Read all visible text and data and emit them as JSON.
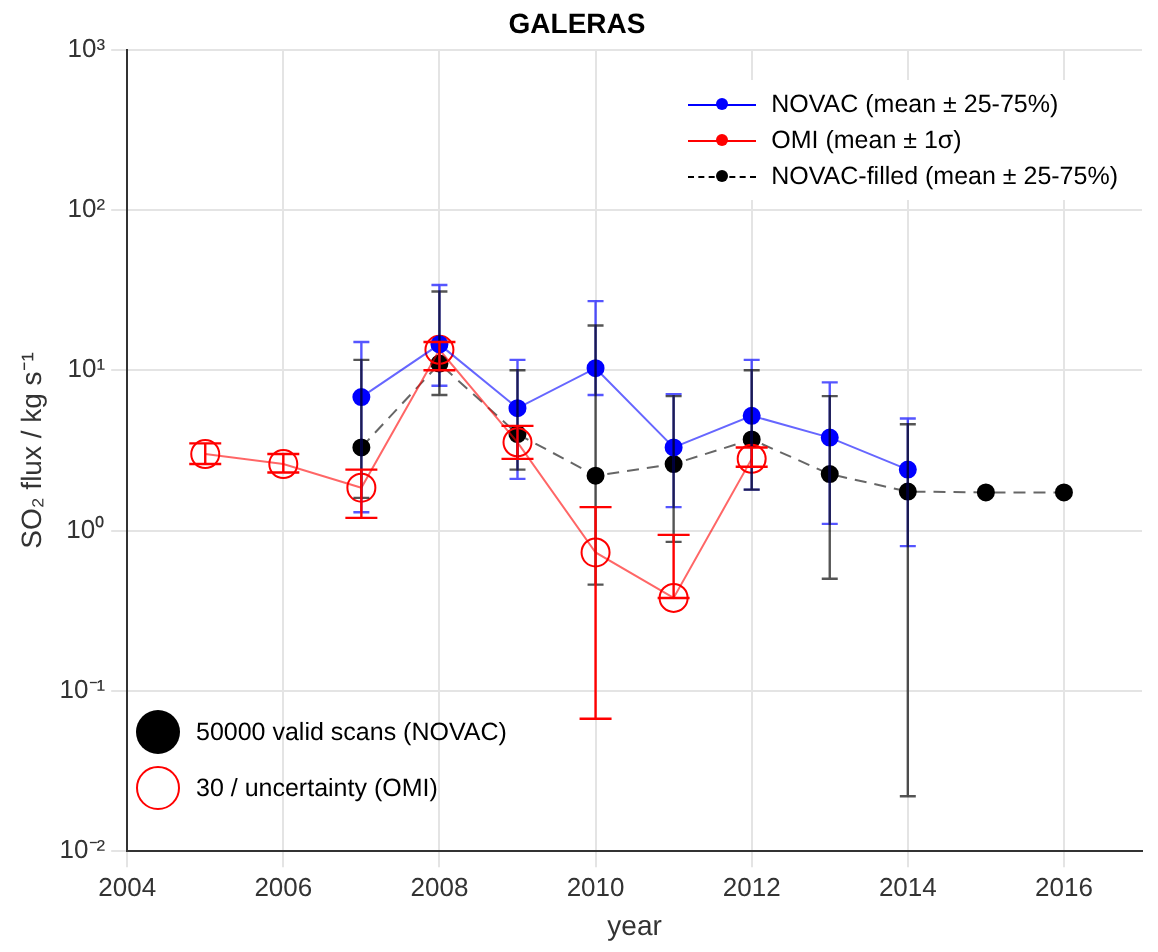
{
  "chart_data": {
    "type": "line",
    "title": "GALERAS",
    "xlabel": "year",
    "ylabel": "SO₂ flux / kg s⁻¹",
    "xlim": [
      2004,
      2017
    ],
    "xticks": [
      2004,
      2006,
      2008,
      2010,
      2012,
      2014,
      2016
    ],
    "ylim": [
      0.01,
      1000
    ],
    "yticks": [
      {
        "value": 0.01,
        "label": "10⁻²"
      },
      {
        "value": 0.1,
        "label": "10⁻¹"
      },
      {
        "value": 1,
        "label": "10⁰"
      },
      {
        "value": 10,
        "label": "10¹"
      },
      {
        "value": 100,
        "label": "10²"
      },
      {
        "value": 1000,
        "label": "10³"
      }
    ],
    "log": "y",
    "grid": true,
    "legend": "top right",
    "marker": "circle",
    "series": [
      {
        "name": "NOVAC (mean ± 25-75%)",
        "color": "#0000ff",
        "line_style": "solid",
        "x": [
          2007,
          2008,
          2009,
          2010,
          2011,
          2012,
          2013,
          2014
        ],
        "values": [
          6.8,
          14.5,
          5.8,
          10.3,
          3.3,
          5.2,
          3.8,
          2.4
        ],
        "errors": [
          [
            1.3,
            15
          ],
          [
            8,
            34
          ],
          [
            2.1,
            11.6
          ],
          [
            7,
            27
          ],
          [
            1.4,
            7.1
          ],
          [
            1.8,
            11.6
          ],
          [
            1.1,
            8.4
          ],
          [
            0.8,
            5
          ]
        ]
      },
      {
        "name": "OMI (mean ± 1σ)",
        "color": "#ff0000",
        "line_style": "solid",
        "x": [
          2005,
          2006,
          2007,
          2008,
          2009,
          2010,
          2011,
          2012
        ],
        "values": [
          3,
          2.6,
          1.85,
          13.4,
          3.55,
          0.73,
          0.38,
          2.8
        ],
        "errors": [
          [
            2.6,
            3.5
          ],
          [
            2.3,
            3
          ],
          [
            1.2,
            2.4
          ],
          [
            10,
            15
          ],
          [
            2.8,
            4.5
          ],
          [
            0.067,
            1.4
          ],
          [
            0.38,
            0.94
          ],
          [
            2.5,
            3.3
          ]
        ]
      },
      {
        "name": "NOVAC-filled (mean ± 25-75%)",
        "color": "#000000",
        "line_style": "dashed",
        "x": [
          2007,
          2008,
          2009,
          2010,
          2011,
          2012,
          2013,
          2014,
          2015,
          2016
        ],
        "values": [
          3.3,
          11,
          4,
          2.2,
          2.6,
          3.7,
          2.25,
          1.75,
          1.73,
          1.73
        ],
        "errors": [
          [
            1.6,
            11.6
          ],
          [
            7,
            31
          ],
          [
            2.4,
            10
          ],
          [
            0.46,
            19
          ],
          [
            0.85,
            6.9
          ],
          [
            1.8,
            10
          ],
          [
            0.5,
            6.9
          ],
          [
            0.022,
            4.6
          ],
          null,
          null
        ]
      }
    ],
    "annotations": [
      "50000 valid scans (NOVAC)",
      "30 / uncertainty (OMI)"
    ]
  }
}
